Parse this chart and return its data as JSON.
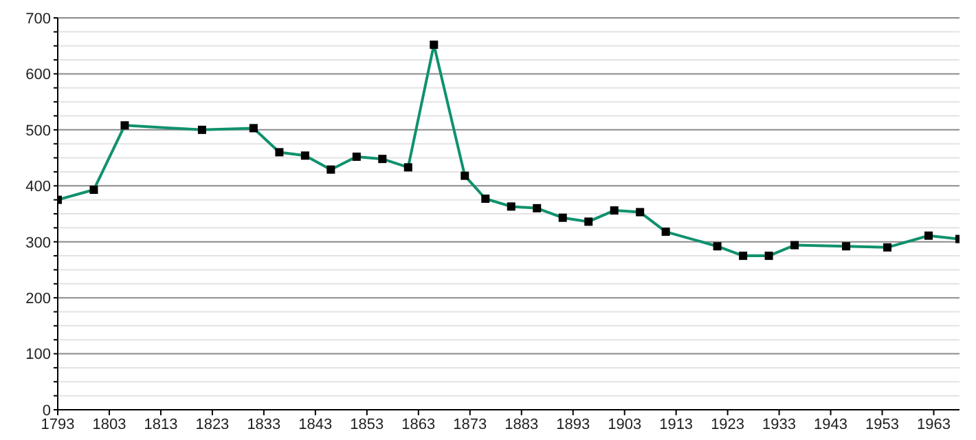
{
  "chart_data": {
    "type": "line",
    "x": [
      1793,
      1800,
      1806,
      1821,
      1831,
      1836,
      1841,
      1846,
      1851,
      1856,
      1861,
      1866,
      1872,
      1876,
      1881,
      1886,
      1891,
      1896,
      1901,
      1906,
      1911,
      1921,
      1926,
      1931,
      1936,
      1946,
      1954,
      1962,
      1968
    ],
    "series": [
      {
        "color": "#10916e",
        "values": [
          375,
          393,
          508,
          500,
          503,
          460,
          454,
          429,
          452,
          448,
          433,
          652,
          418,
          377,
          363,
          360,
          343,
          336,
          356,
          353,
          318,
          292,
          275,
          275,
          294,
          292,
          290,
          311,
          305
        ]
      }
    ],
    "xlim": [
      1793,
      1968
    ],
    "xticks": [
      1793,
      1803,
      1813,
      1823,
      1833,
      1843,
      1853,
      1863,
      1873,
      1883,
      1893,
      1903,
      1913,
      1923,
      1933,
      1943,
      1953,
      1963
    ],
    "ylim": [
      0,
      700
    ],
    "yticks": [
      0,
      {
        "value": 25,
        "label": null
      },
      {
        "value": 50,
        "label": null
      },
      {
        "value": 75,
        "label": null
      },
      100,
      {
        "value": 125,
        "label": null
      },
      {
        "value": 150,
        "label": null
      },
      {
        "value": 175,
        "label": null
      },
      200,
      {
        "value": 225,
        "label": null
      },
      {
        "value": 250,
        "label": null
      },
      {
        "value": 275,
        "label": null
      },
      300,
      {
        "value": 325,
        "label": null
      },
      {
        "value": 350,
        "label": null
      },
      {
        "value": 375,
        "label": null
      },
      400,
      {
        "value": 425,
        "label": null
      },
      {
        "value": 450,
        "label": null
      },
      {
        "value": 475,
        "label": null
      },
      500,
      {
        "value": 525,
        "label": null
      },
      {
        "value": 550,
        "label": null
      },
      {
        "value": 575,
        "label": null
      },
      600,
      {
        "value": 625,
        "label": null
      },
      {
        "value": 650,
        "label": null
      },
      {
        "value": 675,
        "label": null
      },
      700
    ],
    "grid": "y",
    "marker": "square",
    "line_style": "solid"
  }
}
